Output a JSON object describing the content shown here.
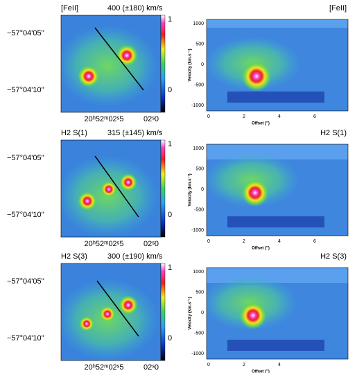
{
  "panels": [
    {
      "left": {
        "title": "[FeII]",
        "velocity": "400  (±180) km/s",
        "dec_ticks": [
          "−57°04'05''",
          "−57°04'10''"
        ],
        "ra_ticks": [
          "20ʰ52ᵐ02ˢ5",
          "02ˢ0"
        ],
        "cbar_ticks": [
          "1",
          "0"
        ]
      },
      "right": {
        "title": "[FeII]",
        "yticks": [
          "1000",
          "500",
          "0",
          "-500",
          "-1000"
        ],
        "xticks": [
          "0",
          "2",
          "4",
          "6"
        ],
        "ylabel": "Velocity (km.s⁻¹)",
        "xlabel": "Offset ('')"
      }
    },
    {
      "left": {
        "title": "H2 S(1)",
        "velocity": "315  (±145) km/s",
        "dec_ticks": [
          "−57°04'05''",
          "−57°04'10''"
        ],
        "ra_ticks": [
          "20ʰ52ᵐ02ˢ5",
          "02ˢ0"
        ],
        "cbar_ticks": [
          "1",
          "0"
        ]
      },
      "right": {
        "title": "H2 S(1)",
        "yticks": [
          "1000",
          "500",
          "0",
          "-500",
          "-1000"
        ],
        "xticks": [
          "0",
          "2",
          "4",
          "6"
        ],
        "ylabel": "Velocity (km.s⁻¹)",
        "xlabel": "Offset ('')"
      }
    },
    {
      "left": {
        "title": "H2 S(3)",
        "velocity": "300  (±190) km/s",
        "dec_ticks": [
          "−57°04'05''",
          "−57°04'10''"
        ],
        "ra_ticks": [
          "20ʰ52ᵐ02ˢ5",
          "02ˢ0"
        ],
        "cbar_ticks": [
          "1",
          "0"
        ]
      },
      "right": {
        "title": "H2 S(3)",
        "yticks": [
          "1000",
          "500",
          "0",
          "-500",
          "-1000"
        ],
        "xticks": [
          "0",
          "2",
          "4"
        ],
        "ylabel": "Velocity (km.s⁻¹)",
        "xlabel": "Offset ('')"
      }
    }
  ]
}
